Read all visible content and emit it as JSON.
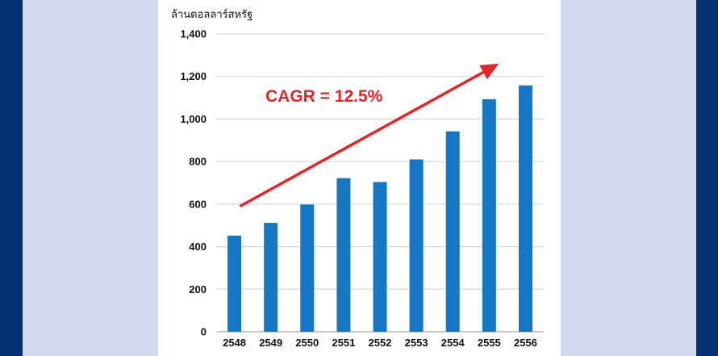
{
  "colors": {
    "outer_band": "#033173",
    "inner_band": "#d3d9ef",
    "panel": "#ffffff",
    "bar": "#1577c3",
    "grid": "#cfcfcf",
    "arrow": "#e0262b"
  },
  "chart_data": {
    "type": "bar",
    "ylabel": "ล้านดอลลาร์สหรัฐ",
    "categories": [
      "2548",
      "2549",
      "2550",
      "2551",
      "2552",
      "2553",
      "2554",
      "2555",
      "2556"
    ],
    "series": [
      {
        "values": [
          452,
          512,
          598,
          722,
          704,
          810,
          942,
          1093,
          1158
        ]
      }
    ],
    "ylim": [
      0,
      1400
    ],
    "yticks": [
      0,
      200,
      400,
      600,
      800,
      1000,
      1200,
      1400
    ],
    "ytick_labels": [
      "0",
      "200",
      "400",
      "600",
      "800",
      "1,000",
      "1,200",
      "1,400"
    ],
    "grid": true,
    "annotation": {
      "text": "CAGR = 12.5%",
      "arrow_from": {
        "x": "2548",
        "y": 590
      },
      "arrow_to": {
        "x": "2555",
        "y": 1260
      }
    }
  }
}
